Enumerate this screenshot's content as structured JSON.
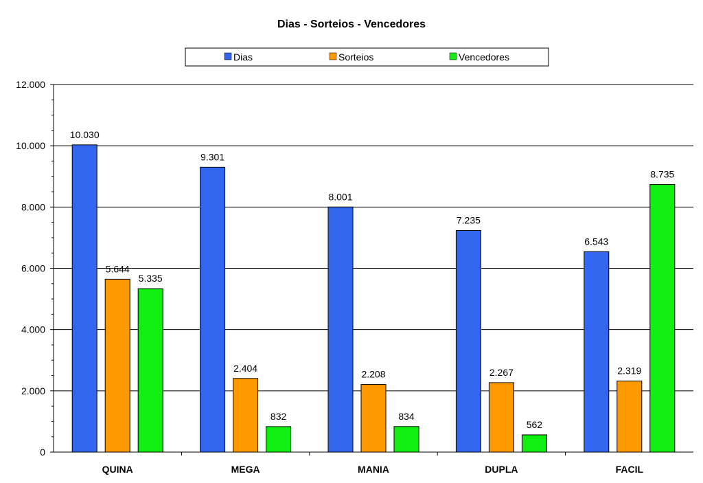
{
  "chart_data": {
    "type": "bar",
    "title": "Dias - Sorteios - Vencedores",
    "xlabel": "",
    "ylabel": "",
    "ylim": [
      0,
      12000
    ],
    "yticks": [
      0,
      2000,
      4000,
      6000,
      8000,
      10000,
      12000
    ],
    "ytick_labels": [
      "0",
      "2.000",
      "4.000",
      "6.000",
      "8.000",
      "10.000",
      "12.000"
    ],
    "grid": true,
    "legend_position": "top",
    "categories": [
      "QUINA",
      "MEGA",
      "MANIA",
      "DUPLA",
      "FACIL"
    ],
    "series": [
      {
        "name": "Dias",
        "color": "#3366ee",
        "values": [
          10030,
          9301,
          8001,
          7235,
          6543
        ],
        "labels": [
          "10.030",
          "9.301",
          "8.001",
          "7.235",
          "6.543"
        ]
      },
      {
        "name": "Sorteios",
        "color": "#ff9900",
        "values": [
          5644,
          2404,
          2208,
          2267,
          2319
        ],
        "labels": [
          "5.644",
          "2.404",
          "2.208",
          "2.267",
          "2.319"
        ]
      },
      {
        "name": "Vencedores",
        "color": "#11ee11",
        "values": [
          5335,
          832,
          834,
          562,
          8735
        ],
        "labels": [
          "5.335",
          "832",
          "834",
          "562",
          "8.735"
        ]
      }
    ]
  }
}
